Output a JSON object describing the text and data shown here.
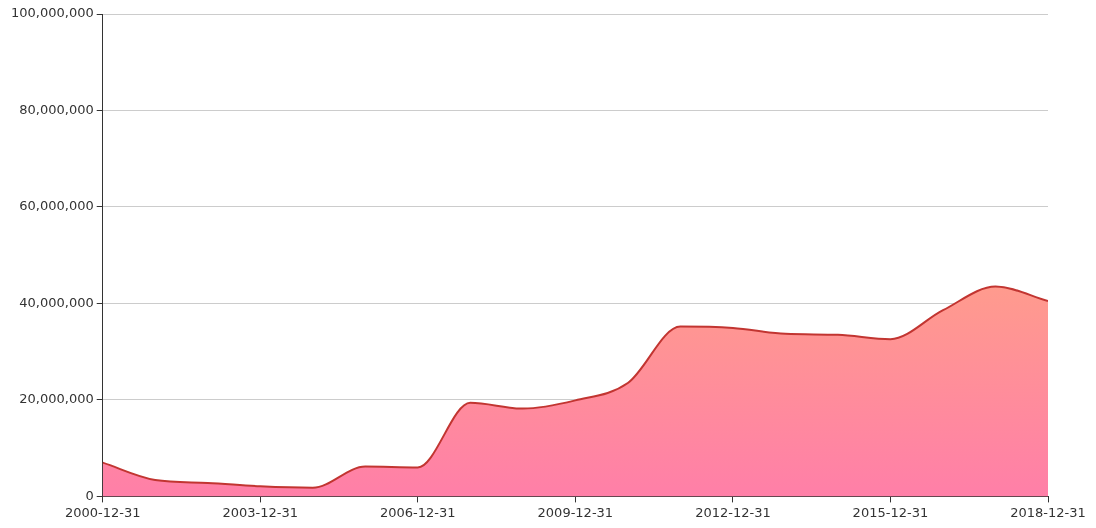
{
  "chart_data": {
    "type": "area",
    "x": [
      "2000-12-31",
      "2001-12-31",
      "2002-12-31",
      "2003-12-31",
      "2004-12-31",
      "2005-12-31",
      "2006-12-31",
      "2007-12-31",
      "2008-12-31",
      "2009-12-31",
      "2010-12-31",
      "2011-12-31",
      "2012-12-31",
      "2013-12-31",
      "2014-12-31",
      "2015-12-31",
      "2016-12-31",
      "2017-12-31",
      "2018-12-31"
    ],
    "series": [
      {
        "color": "#c23531",
        "values": [
          7000000,
          3400000,
          2800000,
          2100000,
          1800000,
          6200000,
          6000000,
          19400000,
          18200000,
          19900000,
          23500000,
          35200000,
          34900000,
          33700000,
          33500000,
          32600000,
          38600000,
          43500000,
          40500000
        ]
      }
    ],
    "xlim": [
      "2000-12-31",
      "2018-12-31"
    ],
    "xticks": [
      "2000-12-31",
      "2003-12-31",
      "2006-12-31",
      "2009-12-31",
      "2012-12-31",
      "2015-12-31",
      "2018-12-31"
    ],
    "ylim": [
      0,
      100000000
    ],
    "yticks": [
      0,
      {
        "value": 20000000,
        "label": "20,000,000"
      },
      {
        "value": 40000000,
        "label": "40,000,000"
      },
      {
        "value": 60000000,
        "label": "60,000,000"
      },
      {
        "value": 80000000,
        "label": "80,000,000"
      },
      {
        "value": 100000000,
        "label": "100,000,000"
      }
    ],
    "grid": "y",
    "marker": "none",
    "line_style": "solid"
  }
}
